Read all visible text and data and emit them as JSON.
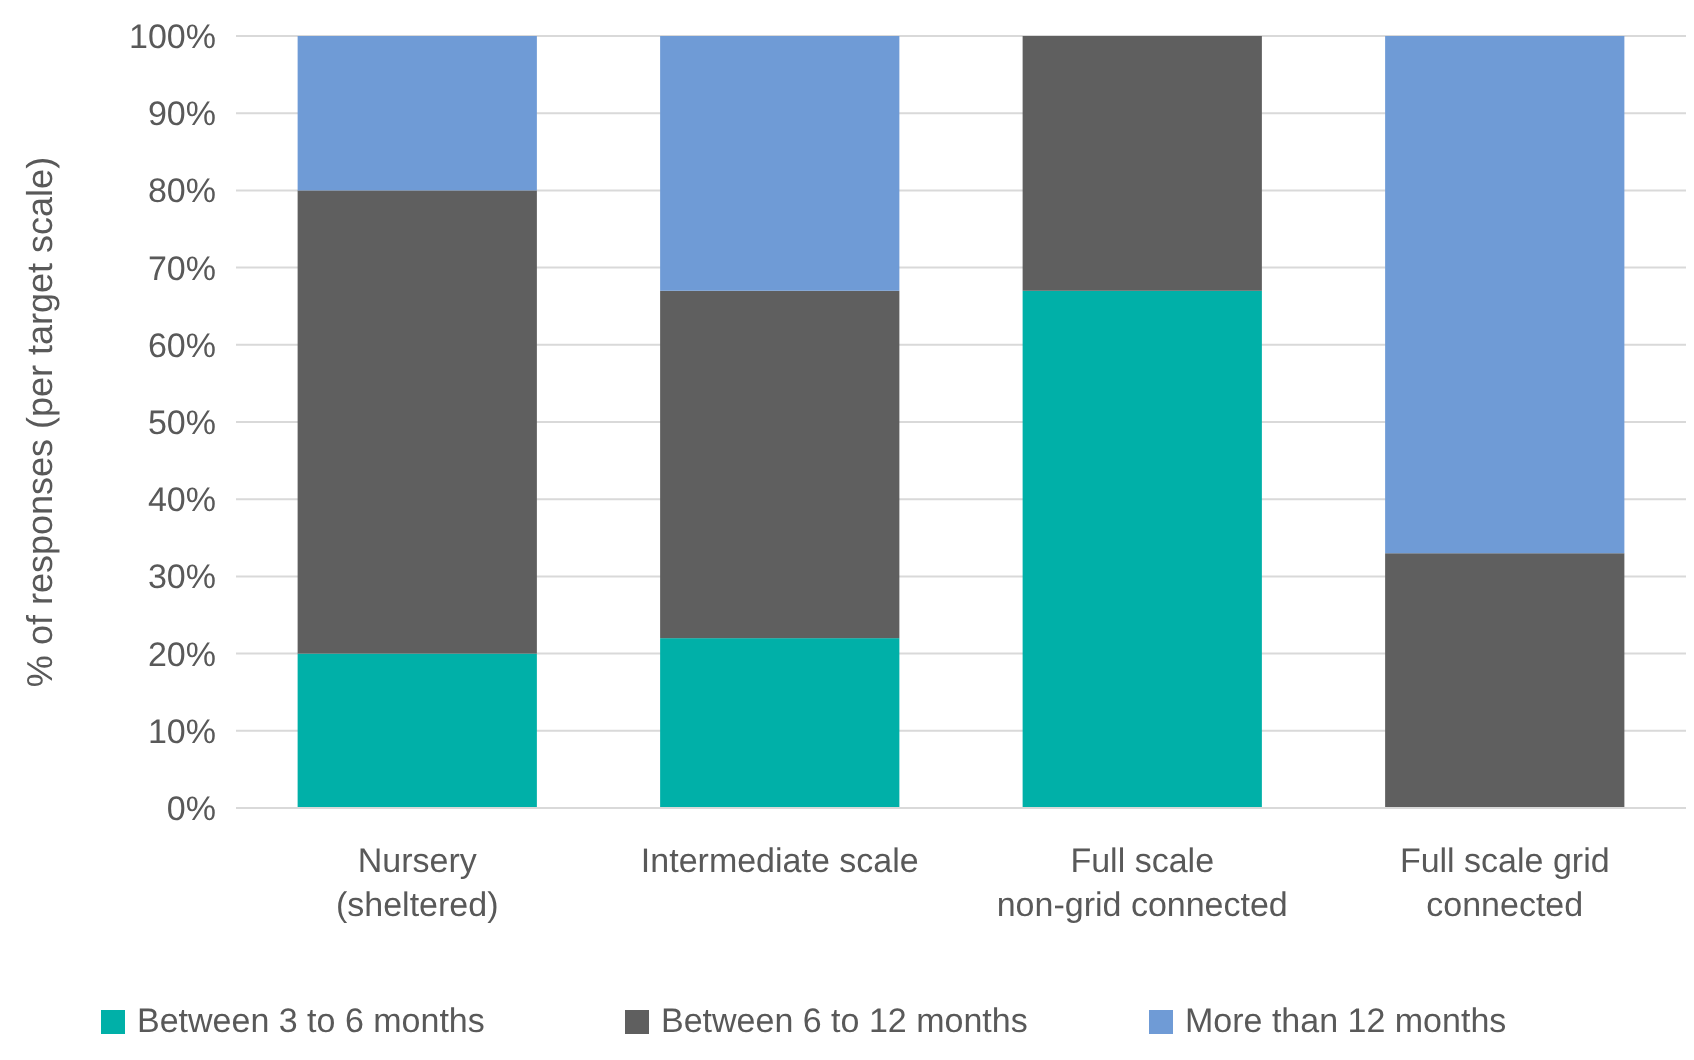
{
  "chart_data": {
    "type": "bar",
    "stacked": true,
    "ylabel": "% of responses (per target scale)",
    "categories": [
      "Nursery (sheltered)",
      "Intermediate scale",
      "Full scale non-grid connected",
      "Full scale grid connected"
    ],
    "series": [
      {
        "name": "Between 3 to 6 months",
        "color": "#00b0a8",
        "values": [
          20,
          22,
          67,
          0
        ]
      },
      {
        "name": "Between 6 to 12 months",
        "color": "#5f5f5f",
        "values": [
          60,
          45,
          33,
          33
        ]
      },
      {
        "name": "More than 12 months",
        "color": "#6f9bd6",
        "values": [
          20,
          33,
          0,
          67
        ]
      }
    ],
    "ylim": [
      0,
      100
    ],
    "yticks": [
      {
        "value": 0,
        "label": "0%"
      },
      {
        "value": 10,
        "label": "10%"
      },
      {
        "value": 20,
        "label": "20%"
      },
      {
        "value": 30,
        "label": "30%"
      },
      {
        "value": 40,
        "label": "40%"
      },
      {
        "value": 50,
        "label": "50%"
      },
      {
        "value": 60,
        "label": "60%"
      },
      {
        "value": 70,
        "label": "70%"
      },
      {
        "value": 80,
        "label": "80%"
      },
      {
        "value": 90,
        "label": "90%"
      },
      {
        "value": 100,
        "label": "100%"
      }
    ],
    "grid": "y",
    "legend": "bottom"
  }
}
